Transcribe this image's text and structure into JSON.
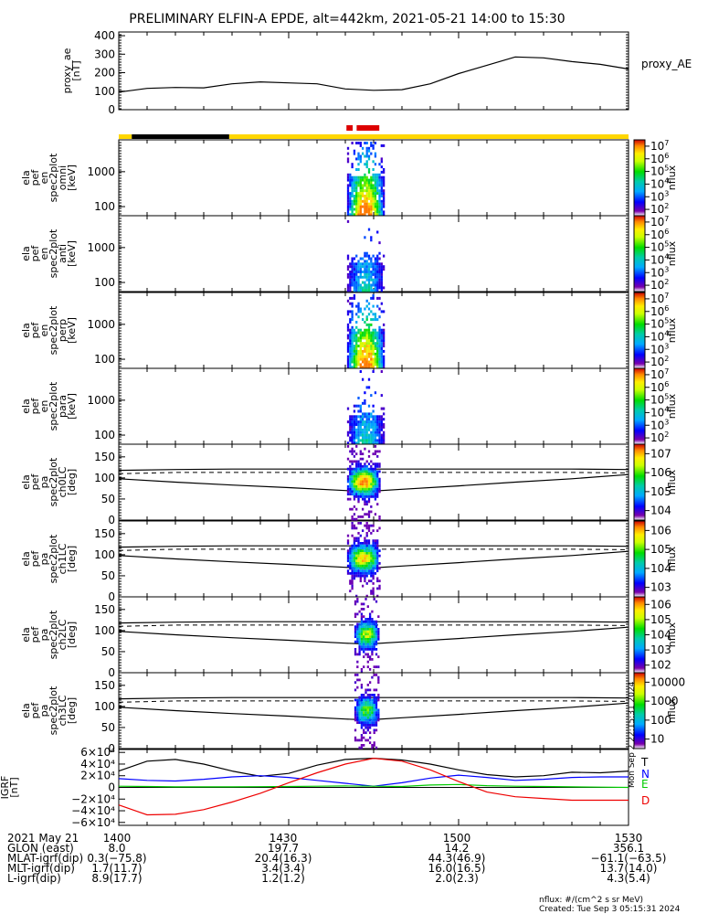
{
  "title": "PRELIMINARY ELFIN-A EPDE, alt=442km, 2021-05-21 14:00 to 15:30",
  "chart_data": {
    "type": "line",
    "time_range": [
      "14:00",
      "15:30"
    ],
    "proxy_ae": {
      "ylabel": [
        "proxy_ae",
        "[nT]"
      ],
      "legend": "proxy_AE",
      "ylim": [
        0,
        420
      ],
      "yticks": [
        "400",
        "300",
        "200",
        "100",
        "0"
      ],
      "x": [
        0,
        5,
        10,
        15,
        20,
        25,
        30,
        35,
        40,
        45,
        50,
        55,
        60,
        65,
        70,
        75,
        80,
        85,
        90
      ],
      "values": [
        95,
        115,
        120,
        118,
        140,
        150,
        145,
        140,
        112,
        105,
        108,
        140,
        195,
        240,
        285,
        280,
        260,
        245,
        220
      ]
    },
    "state_bar": [
      {
        "start": 0,
        "end": 2.3,
        "color": "#ffd700"
      },
      {
        "start": 2.3,
        "end": 19.5,
        "color": "#000000"
      },
      {
        "start": 19.5,
        "end": 90,
        "color": "#ffd700"
      }
    ],
    "science_bar": [
      {
        "start": 40.2,
        "end": 41.3,
        "color": "#dd0000"
      },
      {
        "start": 42.0,
        "end": 46.0,
        "color": "#dd0000"
      }
    ],
    "energy_panels": [
      {
        "ylabel": [
          "ela",
          "pef",
          "en",
          "spec2plot",
          "omni",
          "[keV]"
        ],
        "yticks": [
          "1000",
          "100"
        ],
        "cb_ticks": [
          2,
          3,
          4,
          5,
          6,
          7
        ],
        "cb_label": "nflux",
        "intensity": 1.0
      },
      {
        "ylabel": [
          "ela",
          "pef",
          "en",
          "spec2plot",
          "anti",
          "[keV]"
        ],
        "yticks": [
          "1000",
          "100"
        ],
        "cb_ticks": [
          2,
          3,
          4,
          5,
          6,
          7
        ],
        "cb_label": "nflux",
        "intensity": 0.45
      },
      {
        "ylabel": [
          "ela",
          "pef",
          "en",
          "spec2plot",
          "perp",
          "[keV]"
        ],
        "yticks": [
          "1000",
          "100"
        ],
        "cb_ticks": [
          2,
          3,
          4,
          5,
          6,
          7
        ],
        "cb_label": "nflux",
        "intensity": 1.0
      },
      {
        "ylabel": [
          "ela",
          "pef",
          "en",
          "spec2plot",
          "para",
          "[keV]"
        ],
        "yticks": [
          "1000",
          "100"
        ],
        "cb_ticks": [
          2,
          3,
          4,
          5,
          6,
          7
        ],
        "cb_label": "nflux",
        "intensity": 0.45
      }
    ],
    "pa_panels": [
      {
        "ylabel": [
          "ela",
          "pef",
          "pa",
          "spec2plot",
          "ch0LC",
          "[deg]"
        ],
        "yticks": [
          "150",
          "100",
          "50",
          "0"
        ],
        "cb_ticks": [
          "10^4",
          "10^5",
          "10^6",
          "10^7"
        ],
        "cb_label": "nflux"
      },
      {
        "ylabel": [
          "ela",
          "pef",
          "pa",
          "spec2plot",
          "ch1LC",
          "[deg]"
        ],
        "yticks": [
          "150",
          "100",
          "50",
          "0"
        ],
        "cb_ticks": [
          "10^3",
          "10^4",
          "10^5",
          "10^6"
        ],
        "cb_label": "nflux"
      },
      {
        "ylabel": [
          "ela",
          "pef",
          "pa",
          "spec2plot",
          "ch2LC",
          "[deg]"
        ],
        "yticks": [
          "150",
          "100",
          "50",
          "0"
        ],
        "cb_ticks": [
          "10^2",
          "10^3",
          "10^4",
          "10^5",
          "10^6"
        ],
        "cb_label": "nflux"
      },
      {
        "ylabel": [
          "ela",
          "pef",
          "pa",
          "spec2plot",
          "ch3LC",
          "[deg]"
        ],
        "yticks": [
          "150",
          "100",
          "50",
          "0"
        ],
        "cb_ticks": [
          "10",
          "100",
          "1000",
          "10000"
        ],
        "cb_label": "nflux"
      }
    ],
    "igrf": {
      "ylabel": [
        "IGRF",
        "[nT]"
      ],
      "yticks": [
        "6×10⁴",
        "4×10⁴",
        "2×10⁴",
        "0",
        "−2×10⁴",
        "−4×10⁴",
        "−6×10⁴"
      ],
      "ylim": [
        -65000,
        65000
      ],
      "legend": [
        {
          "name": "T",
          "color": "#000000"
        },
        {
          "name": "N",
          "color": "#0000ff"
        },
        {
          "name": "E",
          "color": "#00cc00"
        },
        {
          "name": "D",
          "color": "#ee0000"
        }
      ],
      "x": [
        0,
        5,
        10,
        15,
        20,
        25,
        30,
        35,
        40,
        45,
        50,
        55,
        60,
        65,
        70,
        75,
        80,
        85,
        90
      ],
      "T": [
        28000,
        45000,
        48000,
        40000,
        28000,
        19000,
        24000,
        38000,
        48000,
        50000,
        47000,
        40000,
        30000,
        22000,
        18000,
        20000,
        26000,
        25000,
        28000
      ],
      "N": [
        15000,
        12000,
        11000,
        14000,
        18000,
        20000,
        17000,
        12000,
        7000,
        2000,
        8000,
        16000,
        21000,
        17000,
        12000,
        14000,
        17000,
        18000,
        18000
      ],
      "E": [
        2000,
        1500,
        1000,
        1000,
        1000,
        1200,
        1500,
        2000,
        2500,
        2000,
        1500,
        4000,
        5000,
        3000,
        2000,
        1500,
        1000,
        500,
        0
      ],
      "D": [
        -30000,
        -47000,
        -46000,
        -38000,
        -25000,
        -10000,
        8000,
        25000,
        40000,
        50000,
        45000,
        30000,
        10000,
        -8000,
        -16000,
        -19000,
        -22000,
        -22000,
        -22000
      ]
    },
    "pa_curves": {
      "x": [
        0,
        10,
        20,
        30,
        40,
        44,
        50,
        60,
        70,
        80,
        90
      ],
      "lc1": [
        98,
        90,
        83,
        77,
        70,
        68,
        73,
        81,
        90,
        98,
        108
      ],
      "lc2": [
        110,
        113,
        113,
        113,
        113,
        113,
        113,
        113,
        113,
        113,
        112
      ],
      "lc3": [
        118,
        120,
        121,
        121,
        121,
        121,
        121,
        121,
        121,
        121,
        120
      ]
    }
  },
  "footer": {
    "rows": [
      [
        "2021 May 21",
        "1400",
        "1430",
        "1500",
        "1530"
      ],
      [
        "GLON (east)",
        "8.0",
        "197.7",
        "14.2",
        "356.1"
      ],
      [
        "MLAT-igrf(dip)",
        "0.3(−75.8)",
        "20.4(16.3)",
        "44.3(46.9)",
        "−61.1(−63.5)"
      ],
      [
        "MLT-igrf(dip)",
        "1.7(11.7)",
        "3.4(3.4)",
        "16.0(16.5)",
        "13.7(14.0)"
      ],
      [
        "L-igrf(dip)",
        "8.9(17.7)",
        "1.2(1.2)",
        "2.0(2.3)",
        "4.3(5.4)"
      ]
    ],
    "note_units": "nflux: #/(cm^2 s sr MeV)",
    "note_created": "Created: Tue Sep  3 05:15:31 2024",
    "side_stamp": "Mon Sep  2 22:15:31 2024"
  }
}
